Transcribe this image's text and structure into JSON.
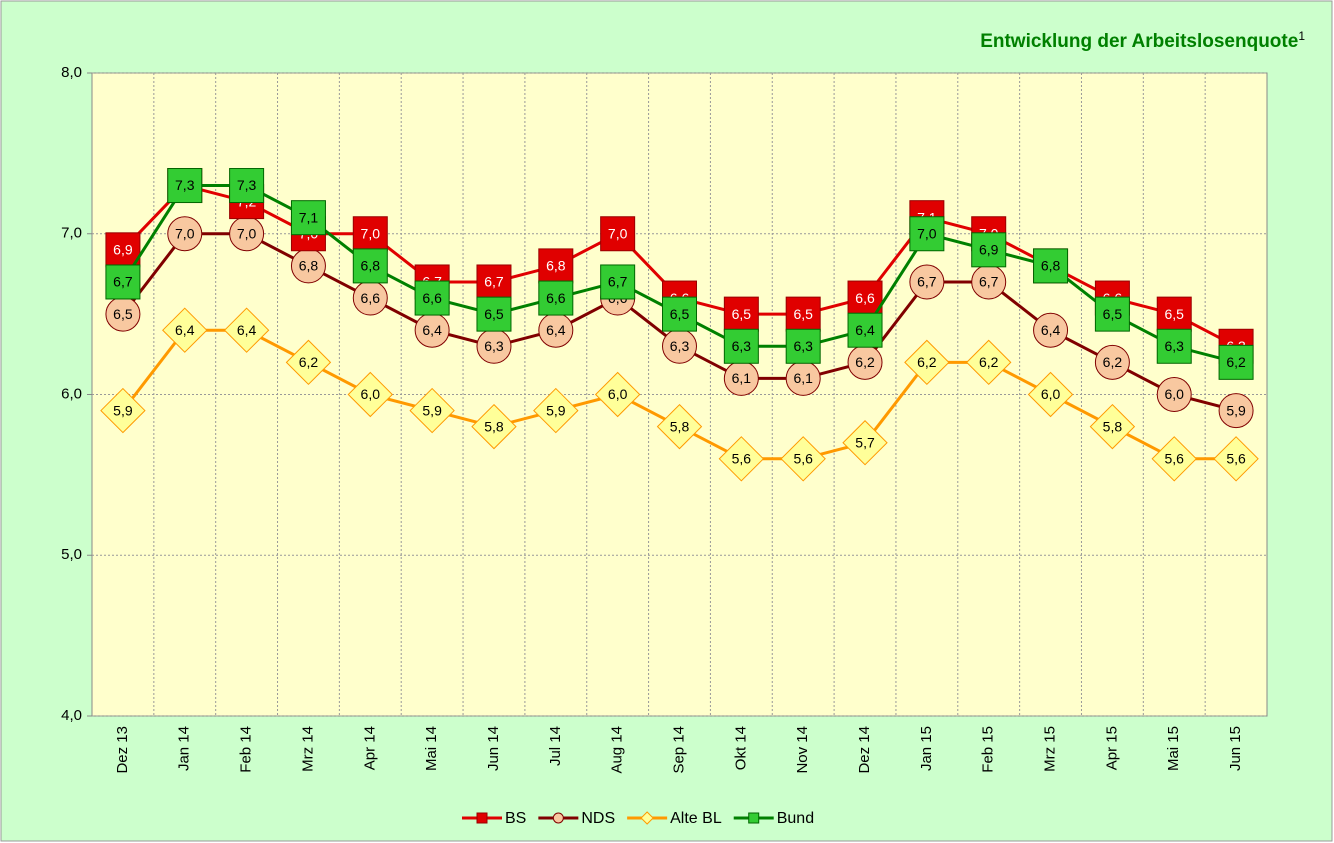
{
  "chart_data": {
    "type": "line",
    "title": "Entwicklung der Arbeitslosenquote",
    "title_note": "1",
    "categories": [
      "Dez 13",
      "Jan 14",
      "Feb 14",
      "Mrz 14",
      "Apr 14",
      "Mai 14",
      "Jun 14",
      "Jul 14",
      "Aug 14",
      "Sep 14",
      "Okt 14",
      "Nov 14",
      "Dez 14",
      "Jan 15",
      "Feb 15",
      "Mrz 15",
      "Apr 15",
      "Mai 15",
      "Jun 15"
    ],
    "ylim": [
      4,
      8
    ],
    "yticks": [
      {
        "value": 4,
        "label": "4,0"
      },
      {
        "value": 5,
        "label": "5,0"
      },
      {
        "value": 6,
        "label": "6,0"
      },
      {
        "value": 7,
        "label": "7,0"
      },
      {
        "value": 8,
        "label": "8,0"
      }
    ],
    "grid": true,
    "legend": "bottom",
    "series": [
      {
        "name": "Alte BL",
        "color": "#ff9900",
        "marker": "diamond",
        "values": [
          5.9,
          6.4,
          6.4,
          6.2,
          6.0,
          5.9,
          5.8,
          5.9,
          6.0,
          5.8,
          5.6,
          5.6,
          5.7,
          6.2,
          6.2,
          6.0,
          5.8,
          5.6,
          5.6
        ],
        "value_labels": [
          "5,9",
          "6,4",
          "6,4",
          "6,2",
          "6,0",
          "5,9",
          "5,8",
          "5,9",
          "6,0",
          "5,8",
          "5,6",
          "5,6",
          "5,7",
          "6,2",
          "6,2",
          "6,0",
          "5,8",
          "5,6",
          "5,6"
        ]
      },
      {
        "name": "NDS",
        "color": "#800000",
        "marker": "circle",
        "values": [
          6.5,
          7.0,
          7.0,
          6.8,
          6.6,
          6.4,
          6.3,
          6.4,
          6.6,
          6.3,
          6.1,
          6.1,
          6.2,
          6.7,
          6.7,
          6.4,
          6.2,
          6.0,
          5.9
        ],
        "value_labels": [
          "6,5",
          "7,0",
          "7,0",
          "6,8",
          "6,6",
          "6,4",
          "6,3",
          "6,4",
          "6,6",
          "6,3",
          "6,1",
          "6,1",
          "6,2",
          "6,7",
          "6,7",
          "6,4",
          "6,2",
          "6,0",
          "5,9"
        ]
      },
      {
        "name": "BS",
        "color": "#e00000",
        "marker": "square",
        "values": [
          6.9,
          7.3,
          7.2,
          7.0,
          7.0,
          6.7,
          6.7,
          6.8,
          7.0,
          6.6,
          6.5,
          6.5,
          6.6,
          7.1,
          7.0,
          6.8,
          6.6,
          6.5,
          6.3
        ],
        "value_labels": [
          "6,9",
          "7,3",
          "7,2",
          "7,0",
          "7,0",
          "6,7",
          "6,7",
          "6,8",
          "7,0",
          "6,6",
          "6,5",
          "6,5",
          "6,6",
          "7,1",
          "7,0",
          "6,8",
          "6,6",
          "6,5",
          "6,3"
        ]
      },
      {
        "name": "Bund",
        "color": "#008000",
        "marker": "square",
        "values": [
          6.7,
          7.3,
          7.3,
          7.1,
          6.8,
          6.6,
          6.5,
          6.6,
          6.7,
          6.5,
          6.3,
          6.3,
          6.4,
          7.0,
          6.9,
          6.8,
          6.5,
          6.3,
          6.2
        ],
        "value_labels": [
          "6,7",
          "7,3",
          "7,3",
          "7,1",
          "6,8",
          "6,6",
          "6,5",
          "6,6",
          "6,7",
          "6,5",
          "6,3",
          "6,3",
          "6,4",
          "7,0",
          "6,9",
          "6,8",
          "6,5",
          "6,3",
          "6,2"
        ]
      }
    ]
  }
}
